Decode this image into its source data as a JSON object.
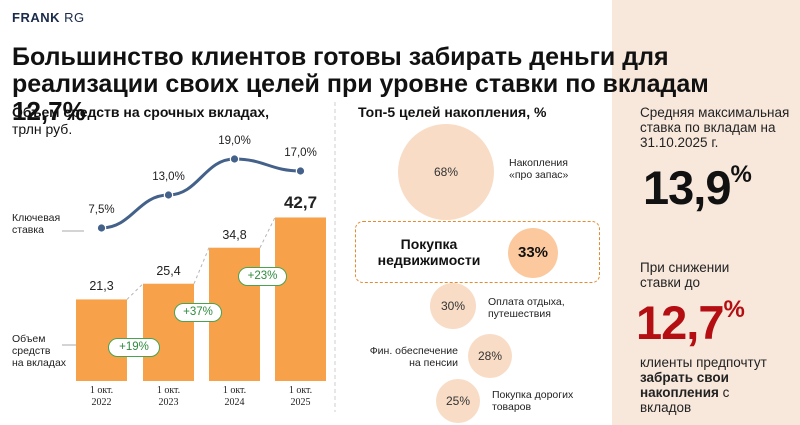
{
  "logo": {
    "bold": "FRANK",
    "light": "RG"
  },
  "headline": {
    "text": "Большинство клиентов готовы забирать деньги для реализации своих целей при уровне ставки по вкладам",
    "rate": "12,7%"
  },
  "left_chart": {
    "title_bold": "Объем средств на срочных вкладах,",
    "title_rest": "трлн руб.",
    "rate_series_label": [
      "Ключевая",
      "ставка"
    ],
    "deposit_series_label": [
      "Объем",
      "средств",
      "на вкладах"
    ]
  },
  "chart_data": [
    {
      "type": "bar",
      "title": "Объем средств на срочных вкладах, трлн руб.",
      "categories": [
        "1 окт. 2022",
        "1 окт. 2023",
        "1 окт. 2024",
        "1 окт. 2025"
      ],
      "category_lines": [
        [
          "1 окт.",
          "2022"
        ],
        [
          "1 окт.",
          "2023"
        ],
        [
          "1 окт.",
          "2024"
        ],
        [
          "1 окт.",
          "2025"
        ]
      ],
      "series": [
        {
          "name": "Объем средств на вкладах",
          "values": [
            21.3,
            25.4,
            34.8,
            42.7
          ],
          "labels": [
            "21,3",
            "25,4",
            "34,8",
            "42,7"
          ],
          "color": "#f7a24a"
        },
        {
          "name": "Ключевая ставка",
          "values": [
            7.5,
            13.0,
            19.0,
            17.0
          ],
          "labels": [
            "7,5%",
            "13,0%",
            "19,0%",
            "17,0%"
          ],
          "color": "#44618a",
          "type": "line"
        }
      ],
      "growth_labels": [
        "+19%",
        "+37%",
        "+23%"
      ],
      "growth_color": "#4aa34f"
    },
    {
      "type": "bubble",
      "title": "Топ-5 целей накопления, %",
      "categories": [
        "Накопления «про запас»",
        "Покупка недвижимости",
        "Оплата отдыха, путешествия",
        "Фин. обеспечение на пенсии",
        "Покупка дорогих товаров"
      ],
      "values": [
        68,
        33,
        30,
        28,
        25
      ],
      "labels": [
        "68%",
        "33%",
        "30%",
        "28%",
        "25%"
      ],
      "highlight": "Покупка недвижимости"
    }
  ],
  "goals": {
    "title": "Топ-5 целей накопления, %",
    "items": [
      {
        "value": "68%",
        "label": [
          "Накопления",
          "«про запас»"
        ]
      },
      {
        "value": "33%",
        "label": [
          "Покупка",
          "недвижимости"
        ]
      },
      {
        "value": "30%",
        "label": [
          "Оплата отдыха,",
          "путешествия"
        ]
      },
      {
        "value": "28%",
        "label": [
          "Фин. обеспечение",
          "на пенсии"
        ]
      },
      {
        "value": "25%",
        "label": [
          "Покупка дорогих",
          "товаров"
        ]
      }
    ]
  },
  "right_panel": {
    "caption1": [
      "Средняя максимальная",
      "ставка по вкладам на",
      "31.10.2025 г."
    ],
    "rate_now": {
      "number": "13,9",
      "pct": "%"
    },
    "caption2": [
      "При снижении",
      "ставки до"
    ],
    "rate_new": {
      "number": "12,7",
      "pct": "%"
    },
    "caption3": {
      "line1": "клиенты предпочтут",
      "bold1": "забрать свои",
      "bold2": "накопления",
      "rest2": " с",
      "line4": "вкладов"
    }
  },
  "colors": {
    "bar": "#f7a24a",
    "line": "#44618a",
    "accent_red": "#b40d12",
    "panel_bg": "#f8e8dc",
    "circle": "#f8dcc6",
    "circle_highlight": "#fbc99d"
  }
}
